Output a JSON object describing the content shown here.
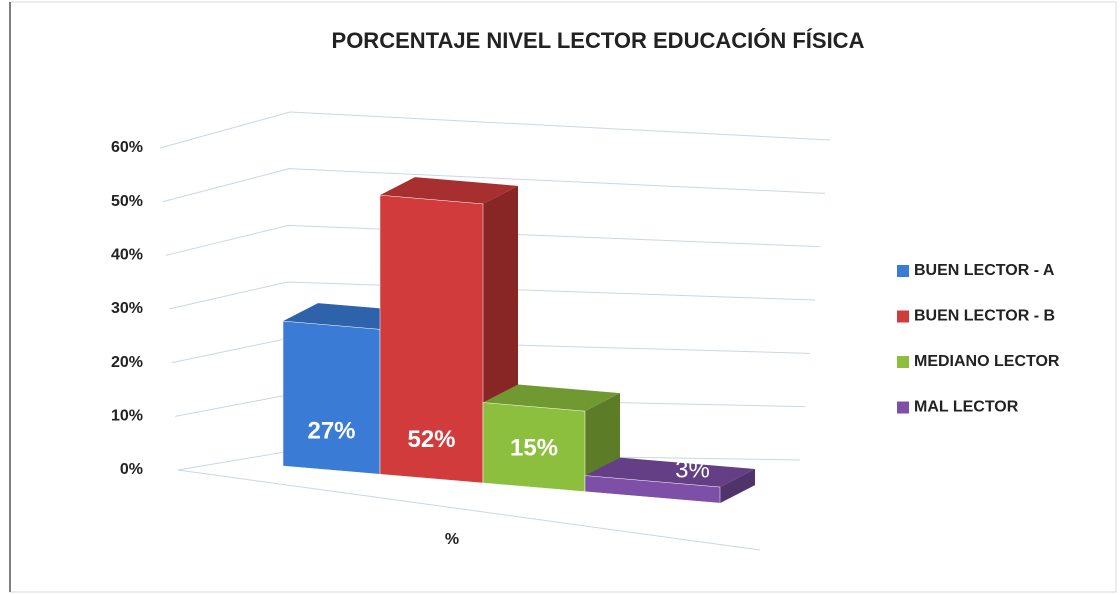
{
  "chart_data": {
    "type": "bar",
    "title": "PORCENTAJE NIVEL LECTOR  EDUCACIÓN FÍSICA",
    "categories": [
      "%"
    ],
    "series": [
      {
        "name": "BUEN LECTOR - A",
        "color": "#3a7bd5",
        "values": [
          27
        ],
        "value_labels": [
          "27%"
        ]
      },
      {
        "name": "BUEN LECTOR - B",
        "color": "#d13b3b",
        "values": [
          52
        ],
        "value_labels": [
          "52%"
        ]
      },
      {
        "name": "MEDIANO LECTOR",
        "color": "#8dbf3e",
        "values": [
          15
        ],
        "value_labels": [
          "15%"
        ]
      },
      {
        "name": "MAL LECTOR",
        "color": "#7d4fa6",
        "values": [
          3
        ],
        "value_labels": [
          "3%"
        ]
      }
    ],
    "ylim": [
      0,
      60
    ],
    "yticks": [
      {
        "value": 0,
        "label": "0%"
      },
      {
        "value": 10,
        "label": "10%"
      },
      {
        "value": 20,
        "label": "20%"
      },
      {
        "value": 30,
        "label": "30%"
      },
      {
        "value": 40,
        "label": "40%"
      },
      {
        "value": 50,
        "label": "50%"
      },
      {
        "value": 60,
        "label": "60%"
      }
    ],
    "grid": true,
    "legend": "right"
  }
}
